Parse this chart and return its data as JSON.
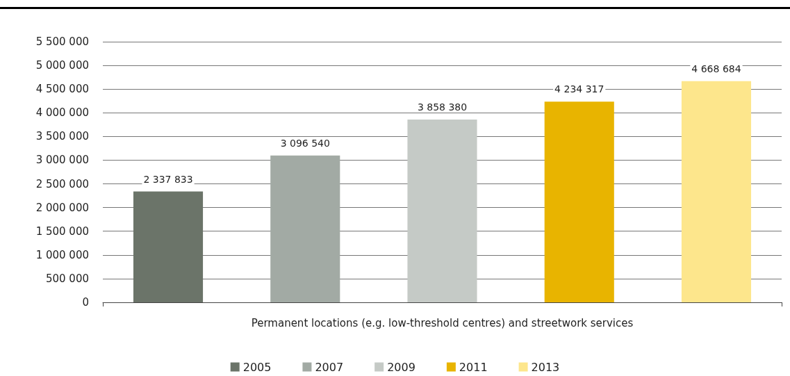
{
  "chart_data": {
    "type": "bar",
    "categories": [
      "Permanent locations (e.g. low-threshold centres) and streetwork services"
    ],
    "series": [
      {
        "name": "2005",
        "color": "#6b7469",
        "values": [
          2337833
        ],
        "value_labels": [
          "2 337 833"
        ]
      },
      {
        "name": "2007",
        "color": "#a2aaa4",
        "values": [
          3096540
        ],
        "value_labels": [
          "3 096 540"
        ]
      },
      {
        "name": "2009",
        "color": "#c5cac6",
        "values": [
          3858380
        ],
        "value_labels": [
          "3 858 380"
        ]
      },
      {
        "name": "2011",
        "color": "#e8b400",
        "values": [
          4234317
        ],
        "value_labels": [
          "4 234 317"
        ]
      },
      {
        "name": "2013",
        "color": "#fde68c",
        "values": [
          4668684
        ],
        "value_labels": [
          "4 668 684"
        ]
      }
    ],
    "ylim": [
      0,
      5500000
    ],
    "yticks": [
      {
        "value": 0,
        "label": "0"
      },
      {
        "value": 500000,
        "label": "500 000"
      },
      {
        "value": 1000000,
        "label": "1 000 000"
      },
      {
        "value": 1500000,
        "label": "1 500 000"
      },
      {
        "value": 2000000,
        "label": "2 000 000"
      },
      {
        "value": 2500000,
        "label": "2 500 000"
      },
      {
        "value": 3000000,
        "label": "3 000 000"
      },
      {
        "value": 3500000,
        "label": "3 500 000"
      },
      {
        "value": 4000000,
        "label": "4 000 000"
      },
      {
        "value": 4500000,
        "label": "4 500 000"
      },
      {
        "value": 5000000,
        "label": "5 000 000"
      },
      {
        "value": 5500000,
        "label": "5 500 000"
      }
    ],
    "grid": "y",
    "legend": "bottom"
  }
}
